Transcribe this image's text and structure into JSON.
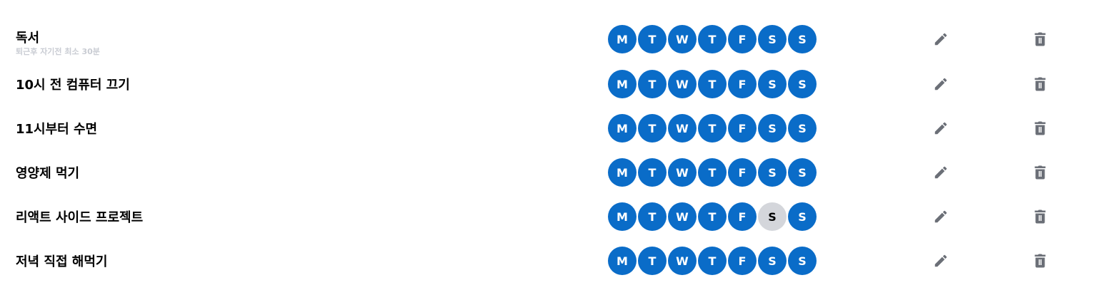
{
  "colors": {
    "day_active": "#0a6cc8",
    "day_inactive": "#d4d6db",
    "icon": "#6b6f77",
    "subtitle": "#c9ccd3"
  },
  "icons": {
    "edit": "pencil-icon",
    "delete": "trash-icon"
  },
  "habits": [
    {
      "title": "독서",
      "subtitle": "퇴근후 자기전 최소 30분",
      "days": [
        {
          "label": "M",
          "active": true
        },
        {
          "label": "T",
          "active": true
        },
        {
          "label": "W",
          "active": true
        },
        {
          "label": "T",
          "active": true
        },
        {
          "label": "F",
          "active": true
        },
        {
          "label": "S",
          "active": true
        },
        {
          "label": "S",
          "active": true
        }
      ]
    },
    {
      "title": "10시 전 컴퓨터 끄기",
      "subtitle": "",
      "days": [
        {
          "label": "M",
          "active": true
        },
        {
          "label": "T",
          "active": true
        },
        {
          "label": "W",
          "active": true
        },
        {
          "label": "T",
          "active": true
        },
        {
          "label": "F",
          "active": true
        },
        {
          "label": "S",
          "active": true
        },
        {
          "label": "S",
          "active": true
        }
      ]
    },
    {
      "title": "11시부터 수면",
      "subtitle": "",
      "days": [
        {
          "label": "M",
          "active": true
        },
        {
          "label": "T",
          "active": true
        },
        {
          "label": "W",
          "active": true
        },
        {
          "label": "T",
          "active": true
        },
        {
          "label": "F",
          "active": true
        },
        {
          "label": "S",
          "active": true
        },
        {
          "label": "S",
          "active": true
        }
      ]
    },
    {
      "title": "영양제 먹기",
      "subtitle": "",
      "days": [
        {
          "label": "M",
          "active": true
        },
        {
          "label": "T",
          "active": true
        },
        {
          "label": "W",
          "active": true
        },
        {
          "label": "T",
          "active": true
        },
        {
          "label": "F",
          "active": true
        },
        {
          "label": "S",
          "active": true
        },
        {
          "label": "S",
          "active": true
        }
      ]
    },
    {
      "title": "리액트 사이드 프로젝트",
      "subtitle": "",
      "days": [
        {
          "label": "M",
          "active": true
        },
        {
          "label": "T",
          "active": true
        },
        {
          "label": "W",
          "active": true
        },
        {
          "label": "T",
          "active": true
        },
        {
          "label": "F",
          "active": true
        },
        {
          "label": "S",
          "active": false
        },
        {
          "label": "S",
          "active": true
        }
      ]
    },
    {
      "title": "저녁 직접 해먹기",
      "subtitle": "",
      "days": [
        {
          "label": "M",
          "active": true
        },
        {
          "label": "T",
          "active": true
        },
        {
          "label": "W",
          "active": true
        },
        {
          "label": "T",
          "active": true
        },
        {
          "label": "F",
          "active": true
        },
        {
          "label": "S",
          "active": true
        },
        {
          "label": "S",
          "active": true
        }
      ]
    }
  ]
}
